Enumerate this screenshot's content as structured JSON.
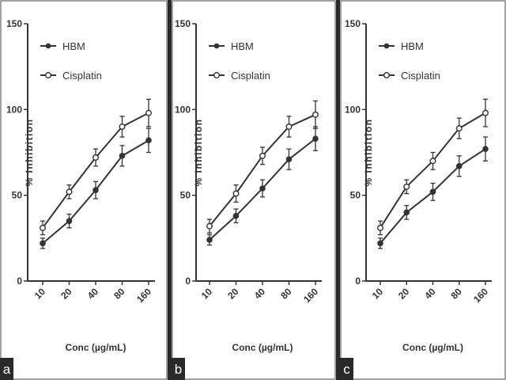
{
  "chart_data": [
    {
      "type": "line",
      "panel_label": "a",
      "categories": [
        "10",
        "20",
        "40",
        "80",
        "160"
      ],
      "xlabel": "Conc (µg/mL)",
      "ylabel": "% Inhibition",
      "ylim": [
        0,
        150
      ],
      "yticks": [
        "0",
        "50",
        "100",
        "150"
      ],
      "grid": false,
      "legend_position": "top-left",
      "series": [
        {
          "name": "HBM",
          "marker": "filled",
          "values": [
            22,
            35,
            53,
            73,
            82
          ],
          "errors": [
            3,
            4,
            5,
            6,
            7
          ]
        },
        {
          "name": "Cisplatin",
          "marker": "open",
          "values": [
            31,
            52,
            72,
            90,
            98
          ],
          "errors": [
            4,
            4,
            5,
            6,
            8
          ]
        }
      ]
    },
    {
      "type": "line",
      "panel_label": "b",
      "categories": [
        "10",
        "20",
        "40",
        "80",
        "160"
      ],
      "xlabel": "Conc (µg/mL)",
      "ylabel": "% Inhibition",
      "ylim": [
        0,
        150
      ],
      "yticks": [
        "0",
        "50",
        "100",
        "150"
      ],
      "grid": false,
      "legend_position": "top-left",
      "series": [
        {
          "name": "HBM",
          "marker": "filled",
          "values": [
            24,
            38,
            54,
            71,
            83
          ],
          "errors": [
            3,
            4,
            5,
            6,
            7
          ]
        },
        {
          "name": "Cisplatin",
          "marker": "open",
          "values": [
            32,
            51,
            73,
            90,
            97
          ],
          "errors": [
            4,
            5,
            5,
            6,
            8
          ]
        }
      ]
    },
    {
      "type": "line",
      "panel_label": "c",
      "categories": [
        "10",
        "20",
        "40",
        "80",
        "160"
      ],
      "xlabel": "Conc (µg/mL)",
      "ylabel": "% Inhibition",
      "ylim": [
        0,
        150
      ],
      "yticks": [
        "0",
        "50",
        "100",
        "150"
      ],
      "grid": false,
      "legend_position": "top-left",
      "series": [
        {
          "name": "HBM",
          "marker": "filled",
          "values": [
            22,
            40,
            52,
            67,
            77
          ],
          "errors": [
            3,
            4,
            5,
            6,
            7
          ]
        },
        {
          "name": "Cisplatin",
          "marker": "open",
          "values": [
            31,
            55,
            70,
            89,
            98
          ],
          "errors": [
            4,
            4,
            5,
            6,
            8
          ]
        }
      ]
    }
  ]
}
